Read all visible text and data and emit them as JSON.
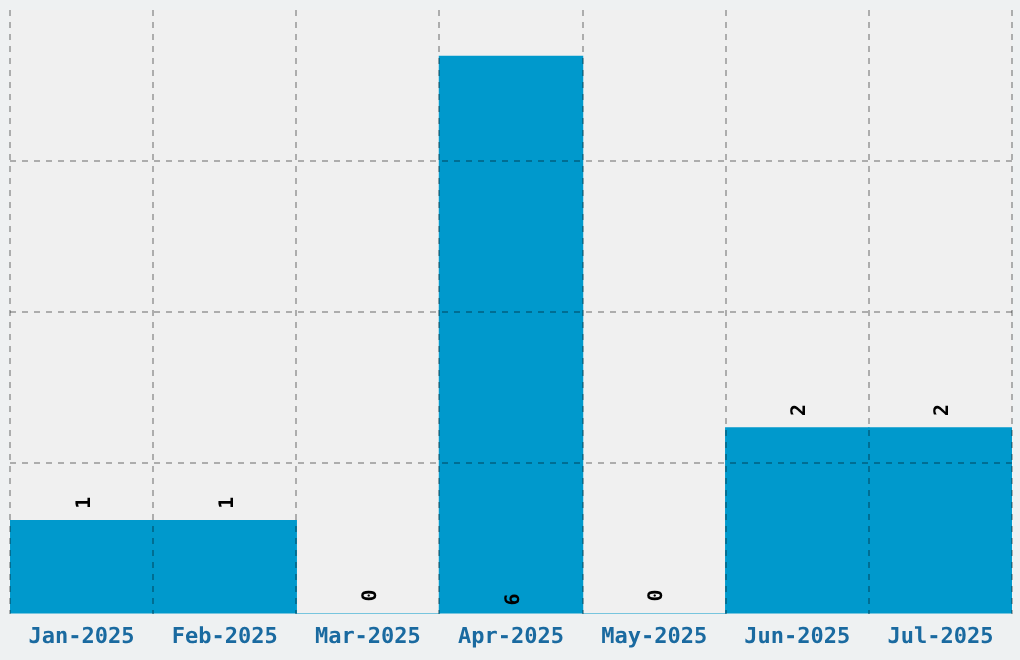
{
  "chart_data": {
    "type": "bar",
    "categories": [
      "Jan-2025",
      "Feb-2025",
      "Mar-2025",
      "Apr-2025",
      "May-2025",
      "Jun-2025",
      "Jul-2025"
    ],
    "values": [
      1,
      1,
      0,
      6,
      0,
      2,
      2
    ],
    "color": "#0099cc",
    "ylim": [
      0,
      6.5
    ],
    "yticks": [
      {
        "value": 1.625,
        "label": null
      },
      {
        "value": 3.25,
        "label": null
      },
      {
        "value": 4.875,
        "label": null
      }
    ],
    "grid": true,
    "tick_labels": "x",
    "data_labels": true
  }
}
